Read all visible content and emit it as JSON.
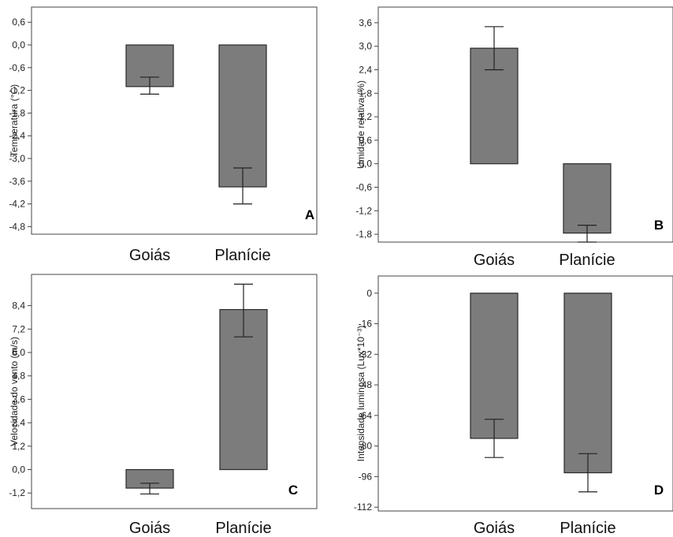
{
  "chart_data": [
    {
      "panel": "A",
      "type": "bar",
      "categories": [
        "Goiás",
        "Planície"
      ],
      "values": [
        -1.1,
        -3.75
      ],
      "errors": [
        [
          -0.85,
          -1.3
        ],
        [
          -3.25,
          -4.2
        ]
      ],
      "ylabel": "Temperatura (°C)",
      "yticks": [
        0.6,
        0.0,
        -0.6,
        -1.2,
        -1.8,
        -2.4,
        -3.0,
        -3.6,
        -4.2,
        -4.8
      ],
      "ytick_labels": [
        "0,6",
        "0,0",
        "-0,6",
        "-1,2",
        "-1,8",
        "-2,4",
        "-3,0",
        "-3,6",
        "-4,2",
        "-4,8"
      ],
      "ylim": [
        -5.0,
        1.0
      ],
      "grid": false
    },
    {
      "panel": "B",
      "type": "bar",
      "categories": [
        "Goiás",
        "Planície"
      ],
      "values": [
        2.95,
        -1.77
      ],
      "errors": [
        [
          3.5,
          2.4
        ],
        [
          -1.57,
          -2.0
        ]
      ],
      "ylabel": "Umidade relativa (%)",
      "yticks": [
        3.6,
        3.0,
        2.4,
        1.8,
        1.2,
        0.6,
        0.0,
        -0.6,
        -1.2,
        -1.8
      ],
      "ytick_labels": [
        "3,6",
        "3,0",
        "2,4",
        "1,8",
        "1,2",
        "0,6",
        "0,0",
        "-0,6",
        "-1,2",
        "-1,8"
      ],
      "ylim": [
        -2.0,
        4.0
      ],
      "grid": false
    },
    {
      "panel": "C",
      "type": "bar",
      "categories": [
        "Goiás",
        "Planície"
      ],
      "values": [
        -0.95,
        8.2
      ],
      "errors": [
        [
          -0.7,
          -1.25
        ],
        [
          9.5,
          6.8
        ]
      ],
      "ylabel": "Velocidade do vento (m/s)",
      "yticks": [
        8.4,
        7.2,
        6.0,
        4.8,
        3.6,
        2.4,
        1.2,
        0.0,
        -1.2
      ],
      "ytick_labels": [
        "8,4",
        "7,2",
        "6,0",
        "4,8",
        "3,6",
        "2,4",
        "1,2",
        "0,0",
        "-1,2"
      ],
      "ylim": [
        -2.0,
        10.0
      ],
      "grid": false
    },
    {
      "panel": "D",
      "type": "bar",
      "categories": [
        "Goiás",
        "Planície"
      ],
      "values": [
        -76,
        -94
      ],
      "errors": [
        [
          -66,
          -86
        ],
        [
          -84,
          -104
        ]
      ],
      "ylabel": "Intensidade luminosa (Lux*10⁻³)",
      "yticks": [
        0,
        -16,
        -32,
        -48,
        -64,
        -80,
        -96,
        -112
      ],
      "ytick_labels": [
        "0",
        "-16",
        "-32",
        "-48",
        "-64",
        "-80",
        "-96",
        "-112"
      ],
      "ylim": [
        -114,
        9
      ],
      "grid": false
    }
  ],
  "colors": {
    "bar_fill": "#7c7c7c",
    "bar_stroke": "#2a2a2a",
    "frame": "#444444",
    "error": "#222222"
  }
}
